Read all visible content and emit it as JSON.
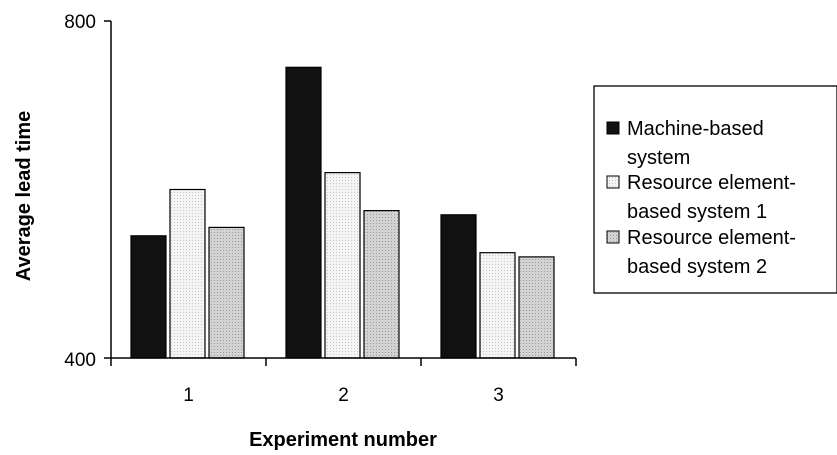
{
  "chart_data": {
    "type": "bar",
    "title": "",
    "xlabel": "Experiment number",
    "ylabel": "Average lead time",
    "categories": [
      "1",
      "2",
      "3"
    ],
    "ylim": [
      400,
      800
    ],
    "yticks": [
      "400",
      "800"
    ],
    "grid": false,
    "legend_position": "right",
    "series": [
      {
        "name": "Machine-based system",
        "legend_lines": [
          "Machine-based",
          "system"
        ],
        "values": [
          545,
          745,
          570
        ],
        "color": "#111111",
        "pattern": "solid"
      },
      {
        "name": "Resource element-based system 1",
        "legend_lines": [
          "Resource element-",
          "based system 1"
        ],
        "values": [
          600,
          620,
          525
        ],
        "color": "#f2f2f2",
        "pattern": "dotted-light"
      },
      {
        "name": "Resource element-based system 2",
        "legend_lines": [
          "Resource element-",
          "based system 2"
        ],
        "values": [
          555,
          575,
          520
        ],
        "color": "#cfcfcf",
        "pattern": "dotted-gray"
      }
    ]
  }
}
